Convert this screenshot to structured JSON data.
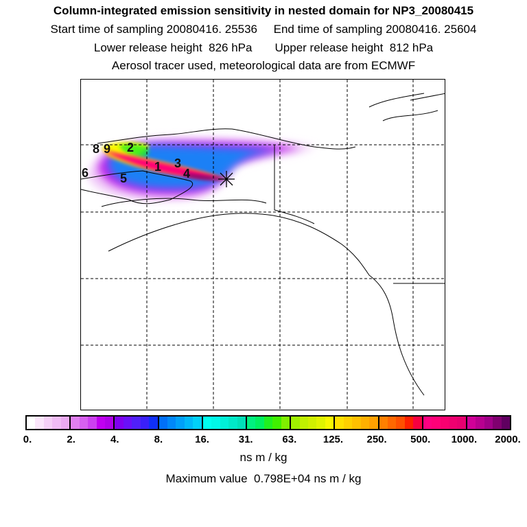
{
  "header": {
    "title": "Column-integrated emission sensitivity in nested domain for NP3_20080415",
    "sampling_line": "Start time of sampling 20080416. 25536     End time of sampling 20080416. 25604",
    "release_line": "Lower release height  826 hPa       Upper release height  812 hPa",
    "info_line": "Aerosol tracer used, meteorological data are from ECMWF"
  },
  "map": {
    "receptor_marker": "asterisk-icon",
    "release_labels": [
      "8",
      "9",
      "2",
      "1",
      "3",
      "4",
      "5",
      "6"
    ]
  },
  "colorbar": {
    "ticks": [
      "0.",
      "2.",
      "4.",
      "8.",
      "16.",
      "31.",
      "63.",
      "125.",
      "250.",
      "500.",
      "1000.",
      "2000."
    ],
    "segments": [
      [
        "#ffffff",
        "#fbe6fb",
        "#f5d0f7",
        "#f0bcf5",
        "#ebaaf2"
      ],
      [
        "#e080f0",
        "#d760f0",
        "#cc40f0",
        "#c000f0",
        "#b000e8"
      ],
      [
        "#8000f0",
        "#6a10f8",
        "#5020f8",
        "#3a20f8",
        "#1030f8"
      ],
      [
        "#0070f8",
        "#0088f8",
        "#00a0f8",
        "#00b8f8",
        "#00d0f8"
      ],
      [
        "#00fff0",
        "#00f8e8",
        "#00f0d8",
        "#00e8c8",
        "#00e0b8"
      ],
      [
        "#00f080",
        "#00f060",
        "#20f020",
        "#40f000",
        "#80f000"
      ],
      [
        "#a0f000",
        "#c0f000",
        "#d0f000",
        "#e0f400",
        "#f8f800"
      ],
      [
        "#ffe000",
        "#ffd000",
        "#ffc000",
        "#ffb000",
        "#ffa000"
      ],
      [
        "#ff8000",
        "#ff6800",
        "#ff5000",
        "#ff2000",
        "#f80040"
      ],
      [
        "#ff0080",
        "#ff0078",
        "#f80070",
        "#f00070",
        "#e80070"
      ],
      [
        "#d00098",
        "#b80090",
        "#a00088",
        "#800070",
        "#600060"
      ]
    ],
    "units": "ns m / kg",
    "max_value_text": "Maximum value  0.798E+04 ns m / kg"
  }
}
